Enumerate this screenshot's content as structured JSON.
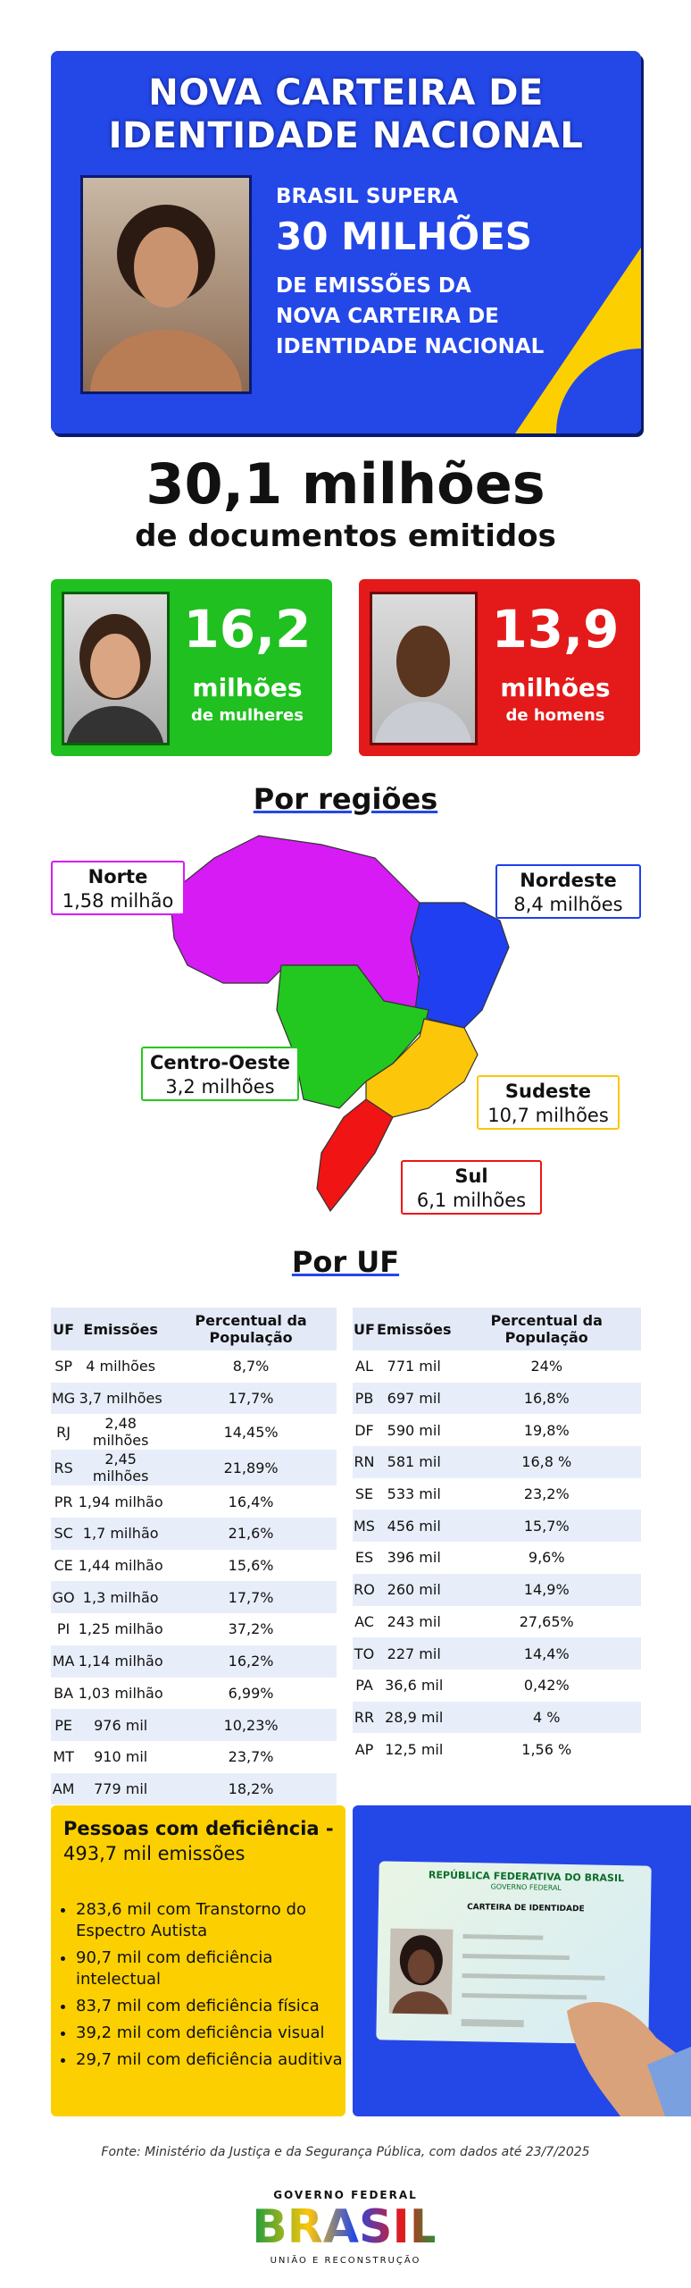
{
  "header": {
    "title_lines": [
      "NOVA CARTEIRA DE",
      "IDENTIDADE NACIONAL"
    ],
    "text_lines": [
      "BRASIL SUPERA",
      "30 MILHÕES",
      "DE EMISSÕES DA",
      "NOVA CARTEIRA DE",
      "IDENTIDADE NACIONAL"
    ]
  },
  "total": {
    "value": "30,1 milhões",
    "label": "de documentos emitidos"
  },
  "women": {
    "value": "16,2",
    "unit": "milhões",
    "label": "de mulheres"
  },
  "men": {
    "value": "13,9",
    "unit": "milhões",
    "label": "de homens"
  },
  "regions": {
    "title": "Por regiões",
    "items": [
      {
        "name": "Norte",
        "value": "1,58 milhão"
      },
      {
        "name": "Nordeste",
        "value": "8,4 milhões"
      },
      {
        "name": "Centro-Oeste",
        "value": "3,2 milhões"
      },
      {
        "name": "Sudeste",
        "value": "10,7 milhões"
      },
      {
        "name": "Sul",
        "value": "6,1 milhões"
      }
    ]
  },
  "uf": {
    "title": "Por UF",
    "columns": [
      "UF",
      "Emissões",
      "Percentual da População"
    ],
    "left_rows": [
      [
        "SP",
        "4 milhões",
        "8,7%"
      ],
      [
        "MG",
        "3,7 milhões",
        "17,7%"
      ],
      [
        "RJ",
        "2,48 milhões",
        "14,45%"
      ],
      [
        "RS",
        "2,45 milhões",
        "21,89%"
      ],
      [
        "PR",
        "1,94 milhão",
        "16,4%"
      ],
      [
        "SC",
        "1,7 milhão",
        "21,6%"
      ],
      [
        "CE",
        "1,44 milhão",
        "15,6%"
      ],
      [
        "GO",
        "1,3 milhão",
        "17,7%"
      ],
      [
        "PI",
        "1,25 milhão",
        "37,2%"
      ],
      [
        "MA",
        "1,14 milhão",
        "16,2%"
      ],
      [
        "BA",
        "1,03 milhão",
        "6,99%"
      ],
      [
        "PE",
        "976 mil",
        "10,23%"
      ],
      [
        "MT",
        "910 mil",
        "23,7%"
      ],
      [
        "AM",
        "779 mil",
        "18,2%"
      ]
    ],
    "right_rows": [
      [
        "AL",
        "771 mil",
        "24%"
      ],
      [
        "PB",
        "697 mil",
        "16,8%"
      ],
      [
        "DF",
        "590 mil",
        "19,8%"
      ],
      [
        "RN",
        "581 mil",
        "16,8 %"
      ],
      [
        "SE",
        "533 mil",
        "23,2%"
      ],
      [
        "MS",
        "456 mil",
        "15,7%"
      ],
      [
        "ES",
        "396 mil",
        "9,6%"
      ],
      [
        "RO",
        "260 mil",
        "14,9%"
      ],
      [
        "AC",
        "243 mil",
        "27,65%"
      ],
      [
        "TO",
        "227 mil",
        "14,4%"
      ],
      [
        "PA",
        "36,6 mil",
        "0,42%"
      ],
      [
        "RR",
        "28,9 mil",
        "4 %"
      ],
      [
        "AP",
        "12,5 mil",
        "1,56 %"
      ]
    ]
  },
  "disability": {
    "title": "Pessoas com deficiência -",
    "subtitle": "493,7 mil emissões",
    "items": [
      "283,6 mil com Transtorno do Espectro Autista",
      "90,7 mil com deficiência intelectual",
      "83,7 mil com deficiência física",
      "39,2 mil com deficiência visual",
      "29,7 mil com deficiência auditiva"
    ]
  },
  "card": {
    "country": "REPÚBLICA FEDERATIVA DO BRASIL",
    "government": "GOVERNO FEDERAL",
    "doc": "CARTEIRA DE IDENTIDADE"
  },
  "source": "Fonte: Ministério da Justiça e da Segurança Pública, com dados até 23/7/2025",
  "logo": {
    "top": "GOVERNO FEDERAL",
    "name": "BRASIL",
    "bottom": "UNIÃO E RECONSTRUÇÃO"
  }
}
